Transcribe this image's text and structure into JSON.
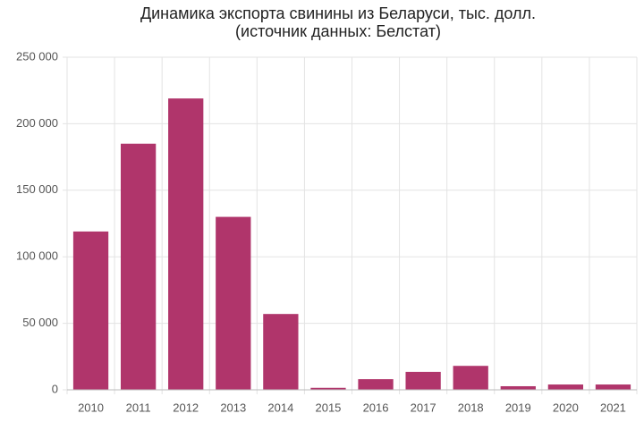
{
  "chart_data": {
    "type": "bar",
    "title": "Динамика экспорта свинины из Беларуси, тыс. долл.",
    "subtitle": "(источник данных: Белстат)",
    "categories": [
      "2010",
      "2011",
      "2012",
      "2013",
      "2014",
      "2015",
      "2016",
      "2017",
      "2018",
      "2019",
      "2020",
      "2021"
    ],
    "values": [
      119000,
      185000,
      219000,
      130000,
      57000,
      1500,
      8000,
      13500,
      18000,
      2700,
      4000,
      4000
    ],
    "color": "#b0356b",
    "ylim": [
      0,
      250000
    ],
    "yticks": [
      0,
      {
        "value": 50000,
        "label": "50 000"
      },
      {
        "value": 100000,
        "label": "100 000"
      },
      {
        "value": 150000,
        "label": "150 000"
      },
      {
        "value": 200000,
        "label": "200 000"
      },
      {
        "value": 250000,
        "label": "250 000"
      }
    ],
    "grid": true
  }
}
